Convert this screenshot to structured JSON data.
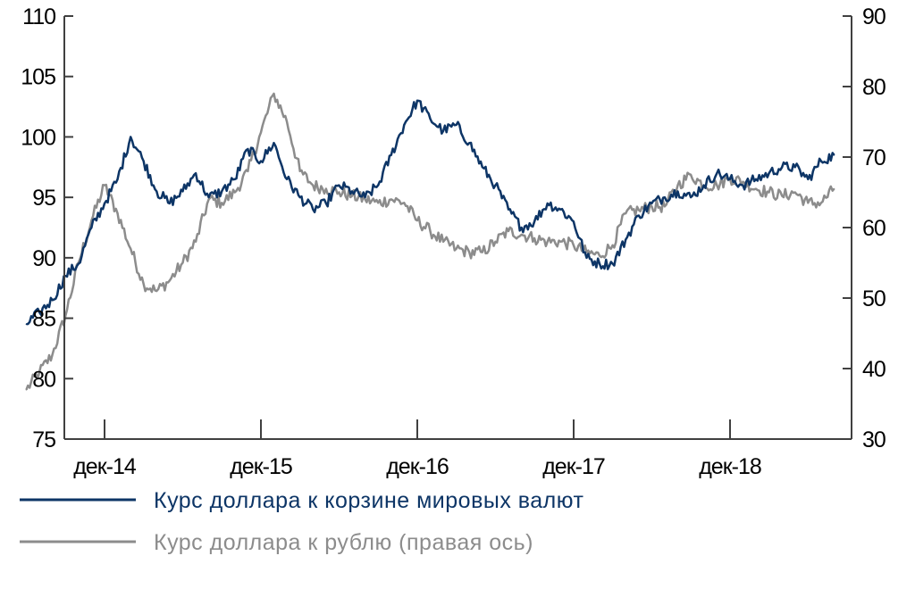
{
  "chart_data": {
    "type": "line",
    "x_tick_labels": [
      "дек-14",
      "дек-15",
      "дек-16",
      "дек-17",
      "дек-18"
    ],
    "left_axis": {
      "ylim": [
        75,
        110
      ],
      "ticks": [
        75,
        80,
        85,
        90,
        95,
        100,
        105,
        110
      ]
    },
    "right_axis": {
      "ylim": [
        30,
        90
      ],
      "ticks": [
        30,
        40,
        50,
        60,
        70,
        80,
        90
      ]
    },
    "grid": false,
    "legend_position": "bottom",
    "series": [
      {
        "name": "Курс доллара к корзине мировых валют",
        "axis": "left",
        "color": "#0d3566",
        "x": [
          "2014-06",
          "2014-07",
          "2014-08",
          "2014-09",
          "2014-10",
          "2014-11",
          "2014-12",
          "2015-01",
          "2015-02",
          "2015-03",
          "2015-04",
          "2015-05",
          "2015-06",
          "2015-07",
          "2015-08",
          "2015-09",
          "2015-10",
          "2015-11",
          "2015-12",
          "2016-01",
          "2016-02",
          "2016-03",
          "2016-04",
          "2016-05",
          "2016-06",
          "2016-07",
          "2016-08",
          "2016-09",
          "2016-10",
          "2016-11",
          "2016-12",
          "2017-01",
          "2017-02",
          "2017-03",
          "2017-04",
          "2017-05",
          "2017-06",
          "2017-07",
          "2017-08",
          "2017-09",
          "2017-10",
          "2017-11",
          "2017-12",
          "2018-01",
          "2018-02",
          "2018-03",
          "2018-04",
          "2018-05",
          "2018-06",
          "2018-07",
          "2018-08",
          "2018-09",
          "2018-10",
          "2018-11",
          "2018-12",
          "2019-01",
          "2019-02",
          "2019-03",
          "2019-04",
          "2019-05",
          "2019-06",
          "2019-07",
          "2019-08"
        ],
        "values": [
          84.5,
          85.5,
          86.5,
          88.5,
          89.5,
          92.5,
          94.5,
          96.5,
          100.0,
          98.0,
          95.5,
          94.5,
          95.5,
          97.0,
          95.0,
          95.5,
          96.5,
          99.0,
          98.0,
          99.5,
          96.5,
          95.0,
          94.0,
          94.5,
          96.0,
          95.5,
          95.0,
          96.0,
          98.5,
          101.0,
          103.0,
          101.5,
          100.5,
          101.0,
          99.5,
          97.5,
          96.0,
          94.0,
          92.5,
          93.0,
          94.5,
          94.0,
          93.0,
          90.0,
          89.5,
          89.5,
          91.5,
          93.5,
          94.5,
          95.0,
          95.5,
          95.0,
          96.0,
          97.0,
          96.5,
          96.0,
          96.5,
          97.0,
          97.5,
          97.5,
          96.5,
          98.0,
          98.5
        ]
      },
      {
        "name": "Курс доллара к рублю (правая ось)",
        "axis": "right",
        "color": "#8c8c8c",
        "x": [
          "2014-06",
          "2014-07",
          "2014-08",
          "2014-09",
          "2014-10",
          "2014-11",
          "2014-12",
          "2015-01",
          "2015-02",
          "2015-03",
          "2015-04",
          "2015-05",
          "2015-06",
          "2015-07",
          "2015-08",
          "2015-09",
          "2015-10",
          "2015-11",
          "2015-12",
          "2016-01",
          "2016-02",
          "2016-03",
          "2016-04",
          "2016-05",
          "2016-06",
          "2016-07",
          "2016-08",
          "2016-09",
          "2016-10",
          "2016-11",
          "2016-12",
          "2017-01",
          "2017-02",
          "2017-03",
          "2017-04",
          "2017-05",
          "2017-06",
          "2017-07",
          "2017-08",
          "2017-09",
          "2017-10",
          "2017-11",
          "2017-12",
          "2018-01",
          "2018-02",
          "2018-03",
          "2018-04",
          "2018-05",
          "2018-06",
          "2018-07",
          "2018-08",
          "2018-09",
          "2018-10",
          "2018-11",
          "2018-12",
          "2019-01",
          "2019-02",
          "2019-03",
          "2019-04",
          "2019-05",
          "2019-06",
          "2019-07",
          "2019-08"
        ],
        "values": [
          37.0,
          39.5,
          42.0,
          47.5,
          55.0,
          61.0,
          66.0,
          62.0,
          57.0,
          52.0,
          51.0,
          52.5,
          55.0,
          58.0,
          64.0,
          63.5,
          65.0,
          68.0,
          73.5,
          79.0,
          75.0,
          68.0,
          66.0,
          65.5,
          65.0,
          64.5,
          64.0,
          63.5,
          64.0,
          63.5,
          61.0,
          59.5,
          58.0,
          57.0,
          56.5,
          56.5,
          58.0,
          59.5,
          59.0,
          58.5,
          58.0,
          58.0,
          57.5,
          56.5,
          56.0,
          57.5,
          62.0,
          62.5,
          63.0,
          63.0,
          66.0,
          67.5,
          66.0,
          66.0,
          67.0,
          66.5,
          65.5,
          65.0,
          64.5,
          65.0,
          63.5,
          63.5,
          65.5
        ]
      }
    ]
  }
}
